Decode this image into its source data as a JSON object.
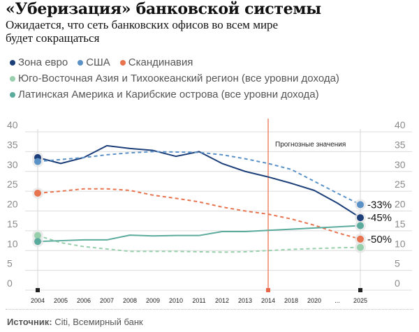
{
  "header": {
    "title": "«Уберизация» банковской системы",
    "subtitle": "Ожидается, что сеть банковских офисов во всем мире будет сокращаться"
  },
  "footer": {
    "source_label": "Источник:",
    "source_text": " Citi, Всемирный банк"
  },
  "chart_data": {
    "type": "line",
    "title": "«Уберизация» банковской системы",
    "subtitle": "Ожидается, что сеть банковских офисов во всем мире будет сокращаться",
    "xlabel": "",
    "ylabel": "",
    "categories": [
      "2004",
      "2005",
      "2006",
      "2007",
      "2008",
      "2009",
      "2010",
      "2011",
      "2012",
      "2013",
      "2014",
      "2018",
      "2020",
      "...",
      "2025"
    ],
    "ylim": [
      0,
      40
    ],
    "yticks": [
      "0",
      "5",
      "10",
      "15",
      "20",
      "25",
      "30",
      "35",
      "40"
    ],
    "grid": true,
    "legend_position": "top-left",
    "forecast_annotation": {
      "category": "2014",
      "label": "Прогнозные значения",
      "color": "#e8694a"
    },
    "series": [
      {
        "name": "Зона евро",
        "color": "#1c3f7a",
        "style": "solid",
        "end_label": "-45%",
        "values": [
          33.5,
          32,
          33.5,
          36.5,
          35.8,
          35.3,
          33.8,
          35,
          32,
          30,
          28.6,
          27,
          25.2,
          22,
          18.3
        ]
      },
      {
        "name": "США",
        "color": "#5a91c6",
        "style": "dashed",
        "end_label": "-33%",
        "values": [
          32.5,
          33,
          33.5,
          34.2,
          34.7,
          35,
          34.9,
          34.8,
          34.2,
          33.2,
          32,
          30.5,
          27.5,
          24.5,
          21.6
        ]
      },
      {
        "name": "Скандинавия",
        "color": "#e8734f",
        "style": "dashed",
        "end_label": "-50%",
        "values": [
          24.5,
          25,
          25.6,
          25.6,
          25.2,
          24,
          23.2,
          22.3,
          21,
          20,
          19.2,
          18,
          16.4,
          14.5,
          12.9
        ]
      },
      {
        "name": "Юго-Восточная Азия и Тихоокеанский регион (все уровни дохода)",
        "color": "#98cfac",
        "style": "dashed",
        "end_label": "",
        "values": [
          13.8,
          12,
          11,
          10.4,
          9.8,
          9.8,
          9.8,
          9.7,
          9.6,
          9.7,
          10,
          10.3,
          10.5,
          10.7,
          10.8
        ]
      },
      {
        "name": "Латинская Америка и Карибские острова (все уровни дохода)",
        "color": "#5aab9c",
        "style": "solid",
        "end_label": "",
        "values": [
          12.3,
          12.5,
          12.7,
          12.7,
          13.9,
          13.7,
          13.8,
          13.8,
          14.8,
          14.8,
          15.1,
          15.4,
          15.7,
          16,
          16.3
        ]
      }
    ]
  }
}
